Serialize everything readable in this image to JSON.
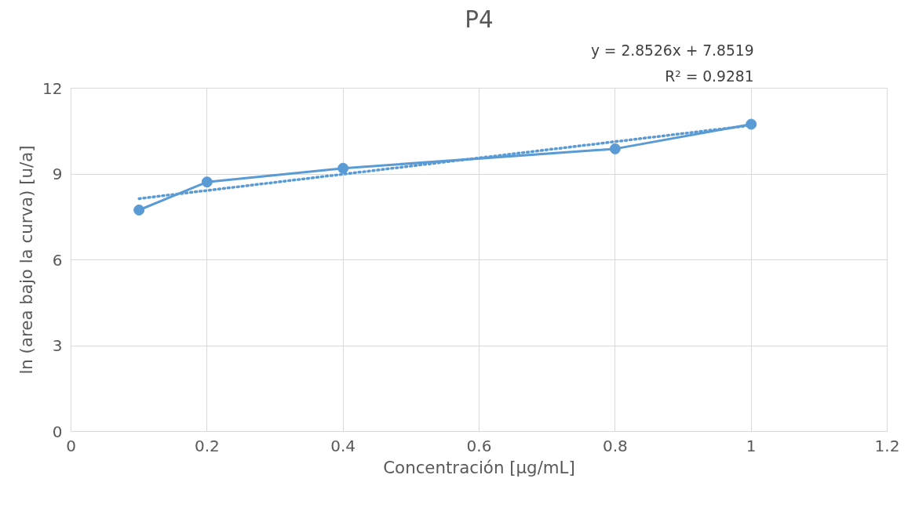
{
  "chart_data": {
    "type": "line",
    "title": "P4",
    "xlabel": "Concentración [µg/mL]",
    "ylabel": "ln (area bajo la curva) [u/a]",
    "x": [
      0.1,
      0.2,
      0.4,
      0.8,
      1
    ],
    "series": [
      {
        "color": "#5b9bd5",
        "values": [
          7.74,
          8.72,
          9.2,
          9.88,
          10.74
        ],
        "marker": "circle",
        "line_style": "solid"
      },
      {
        "color": "#5b9bd5",
        "x": [
          0.1,
          1
        ],
        "values": [
          8.14,
          10.7
        ],
        "marker": "none",
        "line_style": "dotted"
      }
    ],
    "annotations": [
      "y = 2.8526x + 7.8519",
      "R² = 0.9281"
    ],
    "xlim": [
      0,
      1.2
    ],
    "xticks": [
      0,
      0.2,
      0.4,
      0.6,
      0.8,
      1,
      1.2
    ],
    "ylim": [
      0,
      12
    ],
    "yticks": [
      0,
      3,
      6,
      9,
      12
    ],
    "grid": true
  }
}
